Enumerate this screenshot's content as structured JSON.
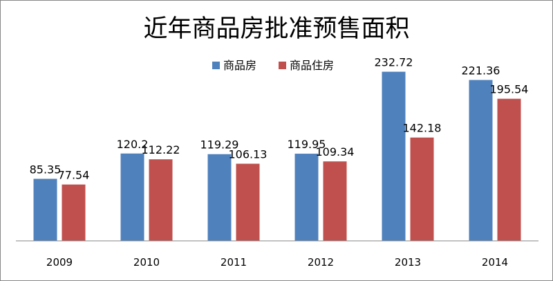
{
  "chart_data": {
    "type": "bar",
    "title": "近年商品房批准预售面积",
    "categories": [
      "2009",
      "2010",
      "2011",
      "2012",
      "2013",
      "2014"
    ],
    "series": [
      {
        "name": "商品房",
        "color": "#4F81BD",
        "values": [
          85.35,
          120.2,
          119.29,
          119.95,
          232.72,
          221.36
        ]
      },
      {
        "name": "商品住房",
        "color": "#C0504D",
        "values": [
          77.54,
          112.22,
          106.13,
          109.34,
          142.18,
          195.54
        ]
      }
    ],
    "data_labels": [
      [
        "85.35",
        "120.2",
        "119.29",
        "119.95",
        "232.72",
        "221.36"
      ],
      [
        "77.54",
        "112.22",
        "106.13",
        "109.34",
        "142.18",
        "195.54"
      ]
    ],
    "xlabel": "",
    "ylabel": "",
    "ylim": [
      0,
      250
    ],
    "grid": false,
    "legend_position": "top-center"
  }
}
